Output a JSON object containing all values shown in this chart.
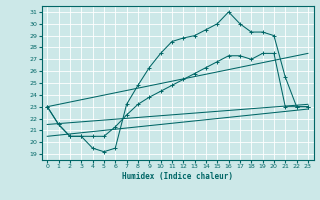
{
  "xlabel": "Humidex (Indice chaleur)",
  "bg_color": "#cce8e8",
  "grid_color": "#ffffff",
  "line_color": "#006666",
  "xlim": [
    -0.5,
    23.5
  ],
  "ylim": [
    18.5,
    31.5
  ],
  "xticks": [
    0,
    1,
    2,
    3,
    4,
    5,
    6,
    7,
    8,
    9,
    10,
    11,
    12,
    13,
    14,
    15,
    16,
    17,
    18,
    19,
    20,
    21,
    22,
    23
  ],
  "yticks": [
    19,
    20,
    21,
    22,
    23,
    24,
    25,
    26,
    27,
    28,
    29,
    30,
    31
  ],
  "curve1_x": [
    0,
    1,
    2,
    3,
    4,
    5,
    6,
    7,
    8,
    9,
    10,
    11,
    12,
    13,
    14,
    15,
    16,
    17,
    18,
    19,
    20,
    21,
    22,
    23
  ],
  "curve1_y": [
    23,
    21.5,
    20.5,
    20.5,
    19.5,
    19.2,
    19.5,
    23.2,
    24.8,
    26.3,
    27.5,
    28.5,
    28.8,
    29.0,
    29.5,
    30.0,
    31.0,
    30.0,
    29.3,
    29.3,
    29.0,
    25.5,
    23.0,
    23.0
  ],
  "curve2_x": [
    0,
    1,
    2,
    3,
    4,
    5,
    6,
    7,
    8,
    9,
    10,
    11,
    12,
    13,
    14,
    15,
    16,
    17,
    18,
    19,
    20,
    21,
    22,
    23
  ],
  "curve2_y": [
    23,
    21.5,
    20.5,
    20.5,
    20.5,
    20.5,
    21.3,
    22.3,
    23.2,
    23.8,
    24.3,
    24.8,
    25.3,
    25.8,
    26.3,
    26.8,
    27.3,
    27.3,
    27.0,
    27.5,
    27.5,
    23.0,
    23.0,
    23.0
  ],
  "line1_x": [
    0,
    23
  ],
  "line1_y": [
    23,
    27.5
  ],
  "line2_x": [
    0,
    23
  ],
  "line2_y": [
    20.5,
    22.8
  ],
  "line3_x": [
    0,
    23
  ],
  "line3_y": [
    21.5,
    23.2
  ]
}
